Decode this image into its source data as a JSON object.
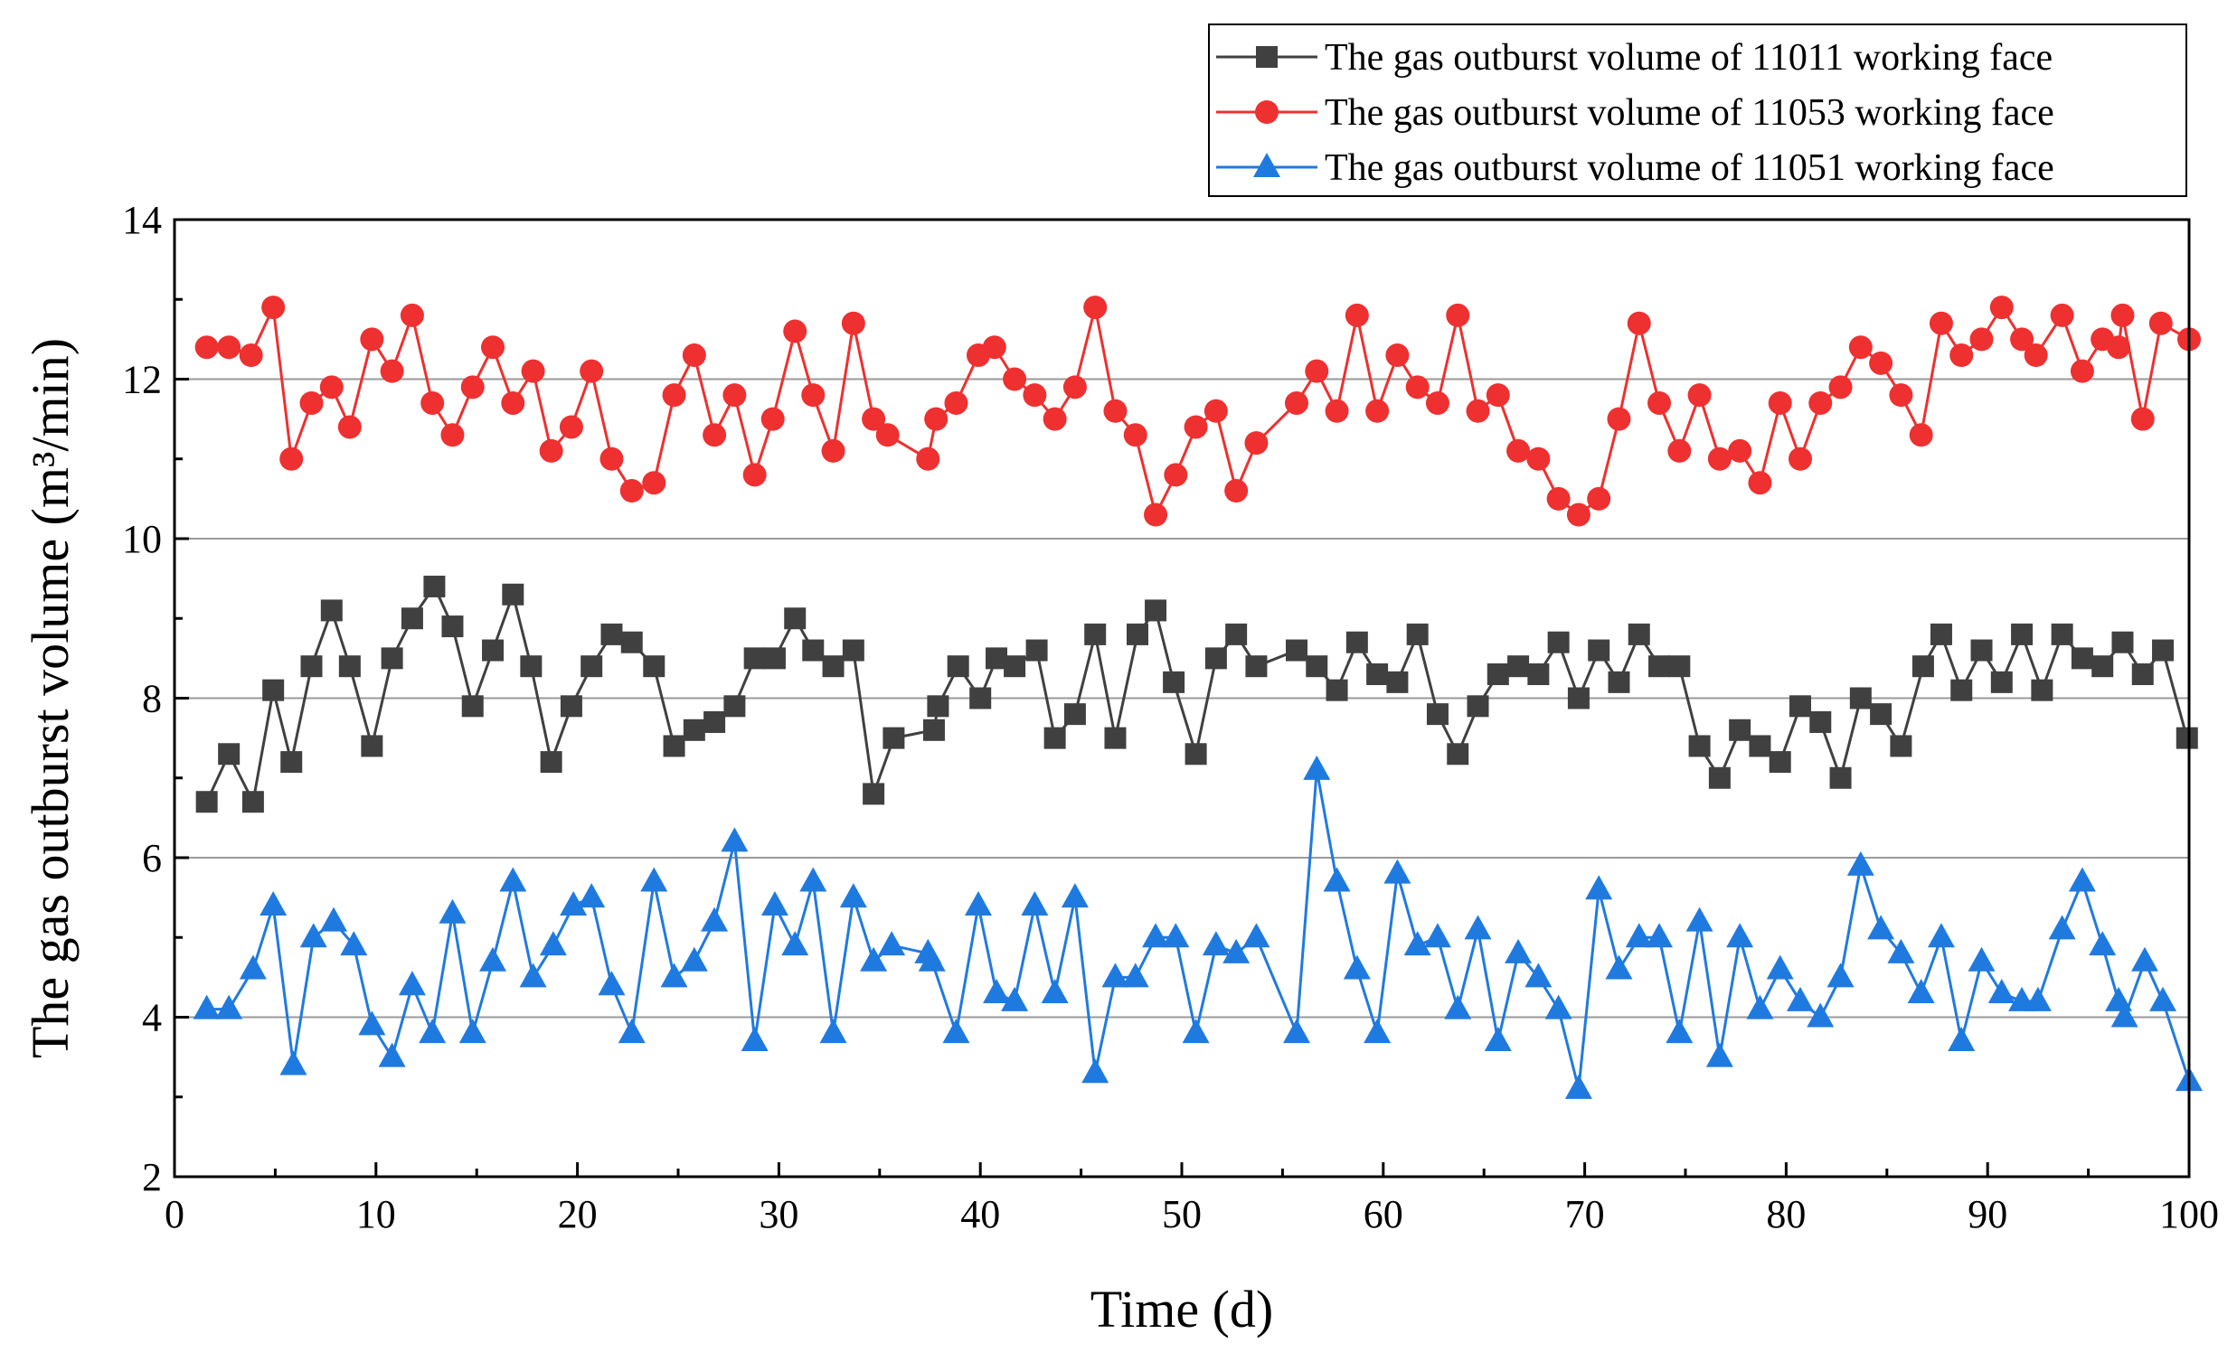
{
  "chart_data": {
    "type": "line",
    "title": "",
    "xlabel": "Time (d)",
    "ylabel": "The gas outburst volume (m³/min)",
    "xlim": [
      0,
      100
    ],
    "ylim": [
      2,
      14
    ],
    "x_ticks": [
      0,
      10,
      20,
      30,
      40,
      50,
      60,
      70,
      80,
      90,
      100
    ],
    "y_ticks": [
      2,
      4,
      6,
      8,
      10,
      12,
      14
    ],
    "grid": "horizontal",
    "legend_position": "top-right, above plot",
    "series": [
      {
        "name": "The gas outburst volume of 11011 working face",
        "color": "#404040",
        "marker": "square",
        "x": [
          1.6,
          2.7,
          3.9,
          4.9,
          5.8,
          6.8,
          7.8,
          8.7,
          9.8,
          10.8,
          11.8,
          12.9,
          13.8,
          14.8,
          15.8,
          16.8,
          17.7,
          18.7,
          19.7,
          20.7,
          21.7,
          22.7,
          23.8,
          24.8,
          25.8,
          26.8,
          27.8,
          28.8,
          29.8,
          30.8,
          31.7,
          32.7,
          33.7,
          34.7,
          35.7,
          37.7,
          37.9,
          38.9,
          40.0,
          40.8,
          41.7,
          42.8,
          43.7,
          44.7,
          45.7,
          46.7,
          47.8,
          48.7,
          49.6,
          50.7,
          51.7,
          52.7,
          53.7,
          55.7,
          56.7,
          57.7,
          58.7,
          59.7,
          60.7,
          61.7,
          62.7,
          63.7,
          64.7,
          65.7,
          66.7,
          67.7,
          68.7,
          69.7,
          70.7,
          71.7,
          72.7,
          73.7,
          74.7,
          75.7,
          76.7,
          77.7,
          78.7,
          79.7,
          80.7,
          81.7,
          82.7,
          83.7,
          84.7,
          85.7,
          86.8,
          87.7,
          88.7,
          89.7,
          90.7,
          91.7,
          92.7,
          93.7,
          94.7,
          95.7,
          96.7,
          97.7,
          98.7,
          99.9
        ],
        "values": [
          6.7,
          7.3,
          6.7,
          8.1,
          7.2,
          8.4,
          9.1,
          8.4,
          7.4,
          8.5,
          9.0,
          9.4,
          8.9,
          7.9,
          8.6,
          9.3,
          8.4,
          7.2,
          7.9,
          8.4,
          8.8,
          8.7,
          8.4,
          7.4,
          7.6,
          7.7,
          7.9,
          8.5,
          8.5,
          9.0,
          8.6,
          8.4,
          8.6,
          6.8,
          7.5,
          7.6,
          7.9,
          8.4,
          8.0,
          8.5,
          8.4,
          8.6,
          7.5,
          7.8,
          8.8,
          7.5,
          8.8,
          9.1,
          8.2,
          7.3,
          8.5,
          8.8,
          8.4,
          8.6,
          8.4,
          8.1,
          8.7,
          8.3,
          8.2,
          8.8,
          7.8,
          7.3,
          7.9,
          8.3,
          8.4,
          8.3,
          8.7,
          8.0,
          8.6,
          8.2,
          8.8,
          8.4,
          8.4,
          7.4,
          7.0,
          7.6,
          7.4,
          7.2,
          7.9,
          7.7,
          7.0,
          8.0,
          7.8,
          7.4,
          8.4,
          8.8,
          8.1,
          8.6,
          8.2,
          8.8,
          8.1,
          8.8,
          8.5,
          8.4,
          8.7,
          8.3,
          8.6,
          7.5
        ]
      },
      {
        "name": "The gas outburst volume of 11053 working face",
        "color": "#ee3030",
        "marker": "circle",
        "x": [
          1.6,
          2.7,
          3.8,
          4.9,
          5.8,
          6.8,
          7.8,
          8.7,
          9.8,
          10.8,
          11.8,
          12.8,
          13.8,
          14.8,
          15.8,
          16.8,
          17.8,
          18.7,
          19.7,
          20.7,
          21.7,
          22.7,
          23.8,
          24.8,
          25.8,
          26.8,
          27.8,
          28.8,
          29.7,
          30.8,
          31.7,
          32.7,
          33.7,
          34.7,
          35.4,
          37.4,
          37.8,
          38.8,
          39.9,
          40.7,
          41.7,
          42.7,
          43.7,
          44.7,
          45.7,
          46.7,
          47.7,
          48.7,
          49.7,
          50.7,
          51.7,
          52.7,
          53.7,
          55.7,
          56.7,
          57.7,
          58.7,
          59.7,
          60.7,
          61.7,
          62.7,
          63.7,
          64.7,
          65.7,
          66.7,
          67.7,
          68.7,
          69.7,
          70.7,
          71.7,
          72.7,
          73.7,
          74.7,
          75.7,
          76.7,
          77.7,
          78.7,
          79.7,
          80.7,
          81.7,
          82.7,
          83.7,
          84.7,
          85.7,
          86.7,
          87.7,
          88.7,
          89.7,
          90.7,
          91.7,
          92.4,
          93.7,
          94.7,
          95.7,
          96.5,
          96.7,
          97.7,
          98.6,
          100.0
        ],
        "values": [
          12.4,
          12.4,
          12.3,
          12.9,
          11.0,
          11.7,
          11.9,
          11.4,
          12.5,
          12.1,
          12.8,
          11.7,
          11.3,
          11.9,
          12.4,
          11.7,
          12.1,
          11.1,
          11.4,
          12.1,
          11.0,
          10.6,
          10.7,
          11.8,
          12.3,
          11.3,
          11.8,
          10.8,
          11.5,
          12.6,
          11.8,
          11.1,
          12.7,
          11.5,
          11.3,
          11.0,
          11.5,
          11.7,
          12.3,
          12.4,
          12.0,
          11.8,
          11.5,
          11.9,
          12.9,
          11.6,
          11.3,
          10.3,
          10.8,
          11.4,
          11.6,
          10.6,
          11.2,
          11.7,
          12.1,
          11.6,
          12.8,
          11.6,
          12.3,
          11.9,
          11.7,
          12.8,
          11.6,
          11.8,
          11.1,
          11.0,
          10.5,
          10.3,
          10.5,
          11.5,
          12.7,
          11.7,
          11.1,
          11.8,
          11.0,
          11.1,
          10.7,
          11.7,
          11.0,
          11.7,
          11.9,
          12.4,
          12.2,
          11.8,
          11.3,
          12.7,
          12.3,
          12.5,
          12.9,
          12.5,
          12.3,
          12.8,
          12.1,
          12.5,
          12.4,
          12.8,
          11.5,
          12.7,
          12.5
        ]
      },
      {
        "name": "The gas outburst volume of 11051 working face",
        "color": "#1f7ae0",
        "marker": "triangle",
        "x": [
          1.6,
          2.7,
          3.9,
          4.9,
          5.9,
          6.9,
          7.9,
          8.9,
          9.8,
          10.8,
          11.8,
          12.8,
          13.8,
          14.8,
          15.8,
          16.8,
          17.8,
          18.8,
          19.8,
          20.7,
          21.7,
          22.7,
          23.8,
          24.8,
          25.8,
          26.8,
          27.8,
          28.8,
          29.8,
          30.8,
          31.7,
          32.7,
          33.7,
          34.7,
          35.6,
          37.4,
          37.6,
          38.8,
          39.9,
          40.8,
          41.7,
          42.7,
          43.7,
          44.7,
          45.7,
          46.7,
          47.7,
          48.7,
          49.7,
          50.7,
          51.7,
          52.7,
          53.7,
          55.7,
          56.7,
          57.7,
          58.7,
          59.7,
          60.7,
          61.7,
          62.7,
          63.7,
          64.7,
          65.7,
          66.7,
          67.7,
          68.7,
          69.7,
          70.7,
          71.7,
          72.7,
          73.7,
          74.7,
          75.7,
          76.7,
          77.7,
          78.7,
          79.7,
          80.7,
          81.7,
          82.7,
          83.7,
          84.7,
          85.7,
          86.7,
          87.7,
          88.7,
          89.7,
          90.7,
          91.7,
          92.5,
          93.7,
          94.7,
          95.7,
          96.5,
          96.8,
          97.8,
          98.7,
          100.0
        ],
        "values": [
          4.1,
          4.1,
          4.6,
          5.4,
          3.4,
          5.0,
          5.2,
          4.9,
          3.9,
          3.5,
          4.4,
          3.8,
          5.3,
          3.8,
          4.7,
          5.7,
          4.5,
          4.9,
          5.4,
          5.5,
          4.4,
          3.8,
          5.7,
          4.5,
          4.7,
          5.2,
          6.2,
          3.7,
          5.4,
          4.9,
          5.7,
          3.8,
          5.5,
          4.7,
          4.9,
          4.8,
          4.7,
          3.8,
          5.4,
          4.3,
          4.2,
          5.4,
          4.3,
          5.5,
          3.3,
          4.5,
          4.5,
          5.0,
          5.0,
          3.8,
          4.9,
          4.8,
          5.0,
          3.8,
          7.1,
          5.7,
          4.6,
          3.8,
          5.8,
          4.9,
          5.0,
          4.1,
          5.1,
          3.7,
          4.8,
          4.5,
          4.1,
          3.1,
          5.6,
          4.6,
          5.0,
          5.0,
          3.8,
          5.2,
          3.5,
          5.0,
          4.1,
          4.6,
          4.2,
          4.0,
          4.5,
          5.9,
          5.1,
          4.8,
          4.3,
          5.0,
          3.7,
          4.7,
          4.3,
          4.2,
          4.2,
          5.1,
          5.7,
          4.9,
          4.2,
          4.0,
          4.7,
          4.2,
          3.2
        ]
      }
    ]
  }
}
